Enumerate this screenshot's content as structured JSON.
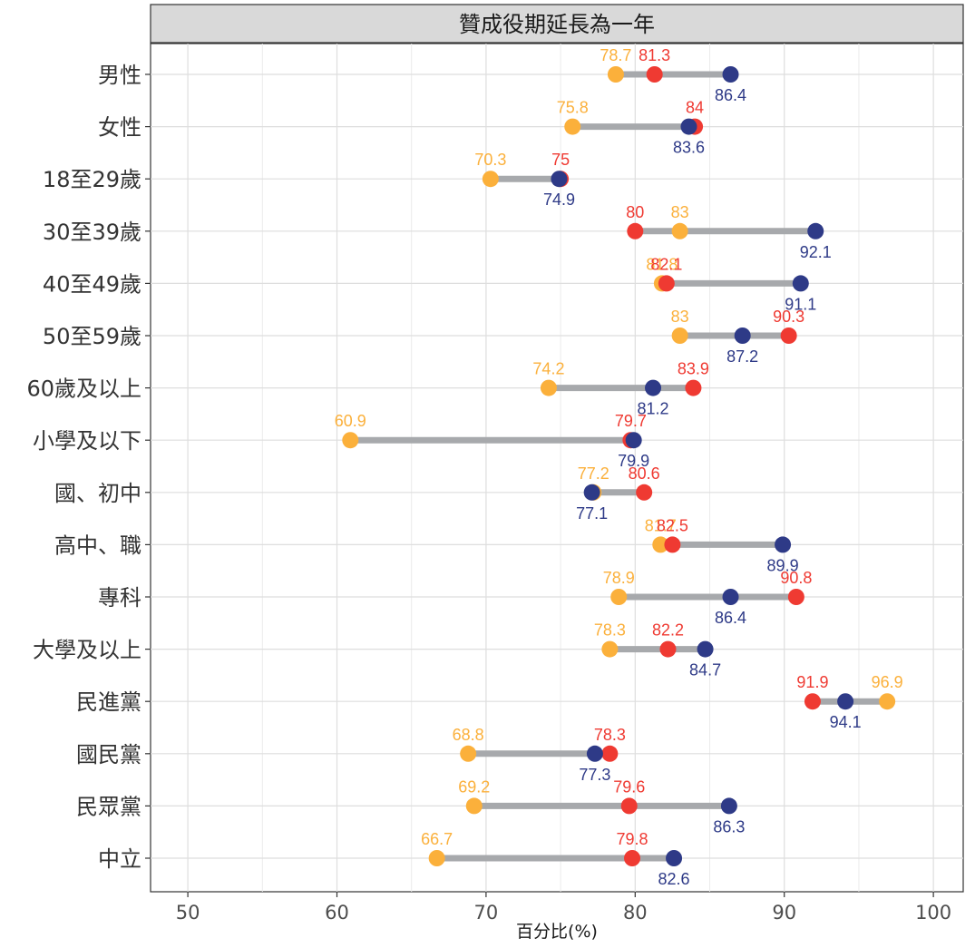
{
  "chart_data": {
    "type": "dumbbell",
    "title": "贊成役期延長為一年",
    "xlabel": "百分比(%)",
    "ylabel": "",
    "xlim": [
      47.5,
      102
    ],
    "xticks": [
      50,
      60,
      70,
      80,
      90,
      100
    ],
    "grid": true,
    "legend": "none",
    "categories": [
      "男性",
      "女性",
      "18至29歲",
      "30至39歲",
      "40至49歲",
      "50至59歲",
      "60歲及以上",
      "小學及以下",
      "國、初中",
      "高中、職",
      "專科",
      "大學及以上",
      "民進黨",
      "國民黨",
      "民眾黨",
      "中立"
    ],
    "series": [
      {
        "color": "#fbb03b",
        "values": [
          78.7,
          75.8,
          70.3,
          83,
          81.8,
          83,
          74.2,
          60.9,
          77.2,
          81.7,
          78.9,
          78.3,
          96.9,
          68.8,
          69.2,
          66.7
        ]
      },
      {
        "color": "#ef3a32",
        "values": [
          81.3,
          84,
          75,
          80,
          82.1,
          90.3,
          83.9,
          79.7,
          80.6,
          82.5,
          90.8,
          82.2,
          91.9,
          78.3,
          79.6,
          79.8
        ]
      },
      {
        "color": "#2e3a87",
        "values": [
          86.4,
          83.6,
          74.9,
          92.1,
          91.1,
          87.2,
          81.2,
          79.9,
          77.1,
          89.9,
          86.4,
          84.7,
          94.1,
          77.3,
          86.3,
          82.6
        ]
      }
    ],
    "segment_color": "#a7a9ac"
  }
}
